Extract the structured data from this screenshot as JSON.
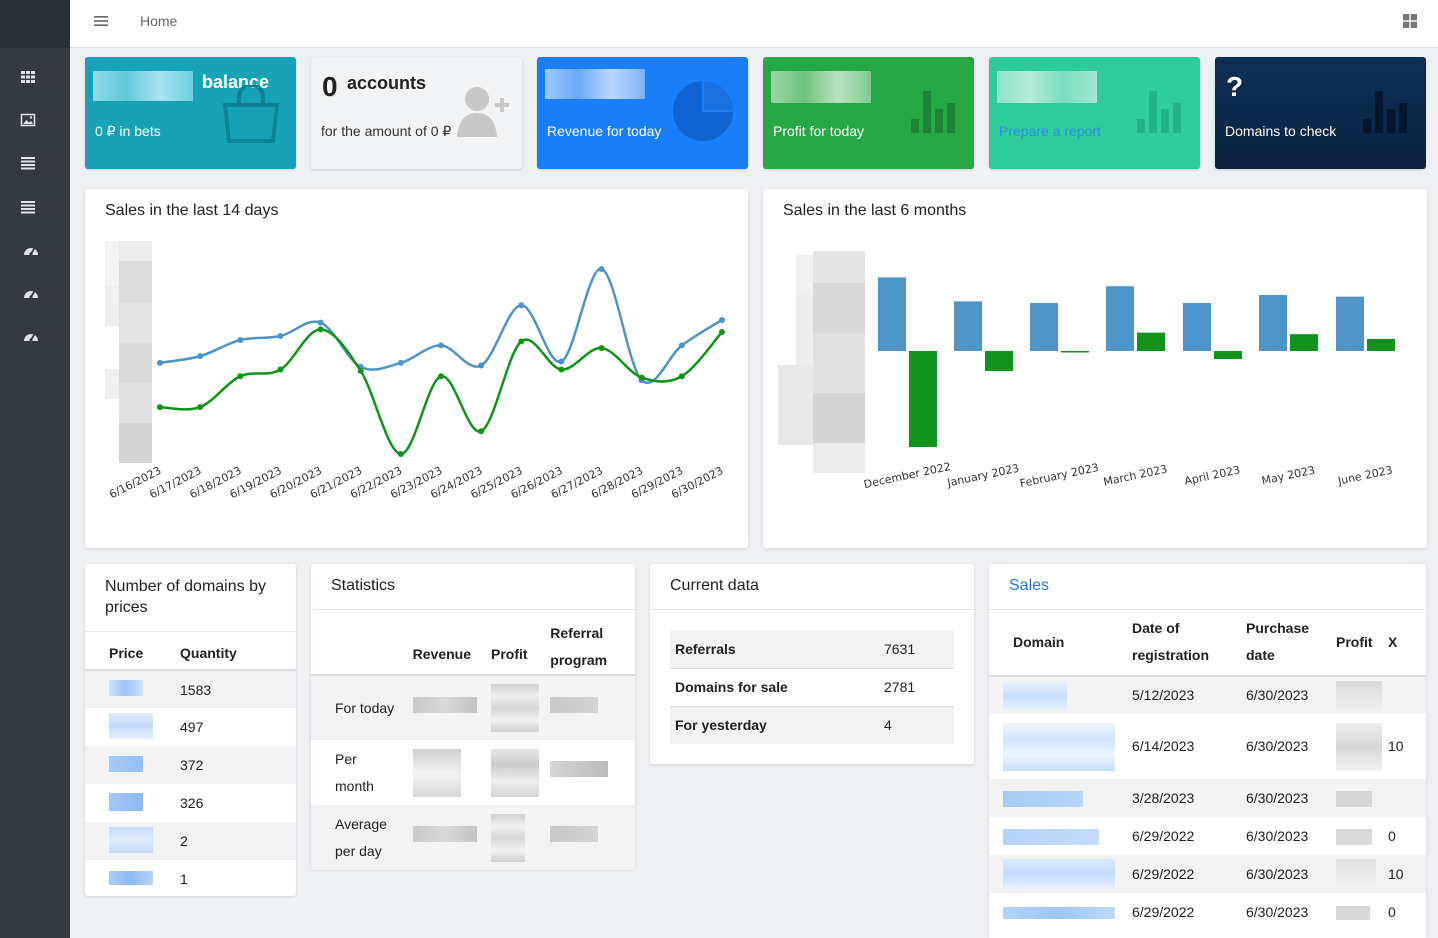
{
  "topbar": {
    "breadcrumb": "Home"
  },
  "tiles": {
    "balance": {
      "title": "balance",
      "subtitle": "0 ₽ in bets",
      "color": "#17a2b8"
    },
    "accounts": {
      "count": "0",
      "title": "accounts",
      "subtitle": "for the amount of 0 ₽",
      "color": "#f2f3f4"
    },
    "revenue": {
      "subtitle": "Revenue for today",
      "color": "#1a7ef8"
    },
    "profit": {
      "subtitle": "Profit for today",
      "color": "#28a745"
    },
    "report": {
      "subtitle": "Prepare a report",
      "color": "#2ecc9a"
    },
    "domains": {
      "count": "?",
      "subtitle": "Domains to check",
      "color": "#0e2a4a"
    }
  },
  "sales14": {
    "title": "Sales in the last 14 days"
  },
  "sales6": {
    "title": "Sales in the last 6 months"
  },
  "chart_data": [
    {
      "type": "line",
      "title": "Sales in the last 14 days",
      "x": [
        "6/16/2023",
        "6/17/2023",
        "6/18/2023",
        "6/19/2023",
        "6/20/2023",
        "6/21/2023",
        "6/22/2023",
        "6/23/2023",
        "6/24/2023",
        "6/25/2023",
        "6/26/2023",
        "6/27/2023",
        "6/28/2023",
        "6/29/2023",
        "6/30/2023"
      ],
      "series": [
        {
          "color": "#4f94c6",
          "values": [
            0.55,
            0.6,
            0.72,
            0.75,
            0.85,
            0.52,
            0.55,
            0.68,
            0.53,
            0.98,
            0.56,
            1.25,
            0.42,
            0.68,
            0.87
          ]
        },
        {
          "color": "#12931c",
          "values": [
            0.22,
            0.22,
            0.45,
            0.5,
            0.8,
            0.49,
            -0.13,
            0.45,
            0.04,
            0.71,
            0.5,
            0.66,
            0.44,
            0.45,
            0.78
          ]
        }
      ],
      "grid": false
    },
    {
      "type": "bar",
      "title": "Sales in the last 6 months",
      "categories": [
        "December 2022",
        "January 2023",
        "February 2023",
        "March 2023",
        "April 2023",
        "May 2023",
        "June 2023"
      ],
      "series": [
        {
          "color": "#4f94c6",
          "values": [
            0.92,
            0.62,
            0.6,
            0.81,
            0.6,
            0.7,
            0.68
          ]
        },
        {
          "color": "#12931c",
          "values": [
            -1.2,
            -0.25,
            0,
            0.23,
            -0.1,
            0.21,
            0.15
          ]
        }
      ]
    }
  ],
  "domains_by_price": {
    "title": "Number of domains by prices",
    "col_price": "Price",
    "col_qty": "Quantity",
    "rows": [
      {
        "qty": "1583"
      },
      {
        "qty": "497"
      },
      {
        "qty": "372"
      },
      {
        "qty": "326"
      },
      {
        "qty": "2"
      },
      {
        "qty": "1"
      }
    ]
  },
  "statistics": {
    "title": "Statistics",
    "col_revenue": "Revenue",
    "col_profit": "Profit",
    "col_referral": "Referral program",
    "rows": [
      {
        "label": "For today"
      },
      {
        "label": "Per month"
      },
      {
        "label": "Average per day"
      }
    ]
  },
  "current": {
    "title": "Current data",
    "rows": [
      {
        "label": "Referrals",
        "value": "7631"
      },
      {
        "label": "Domains for sale",
        "value": "2781"
      },
      {
        "label": "For yesterday",
        "value": "4"
      }
    ]
  },
  "sales_table": {
    "title": "Sales",
    "col_domain": "Domain",
    "col_reg": "Date of registration",
    "col_purchase": "Purchase date",
    "col_profit": "Profit",
    "col_x": "X",
    "rows": [
      {
        "reg": "5/12/2023",
        "purchase": "6/30/2023",
        "x": ""
      },
      {
        "reg": "6/14/2023",
        "purchase": "6/30/2023",
        "x": "10"
      },
      {
        "reg": "3/28/2023",
        "purchase": "6/30/2023",
        "x": ""
      },
      {
        "reg": "6/29/2022",
        "purchase": "6/30/2023",
        "x": "0"
      },
      {
        "reg": "6/29/2022",
        "purchase": "6/30/2023",
        "x": "10"
      },
      {
        "reg": "6/29/2022",
        "purchase": "6/30/2023",
        "x": "0"
      }
    ]
  }
}
